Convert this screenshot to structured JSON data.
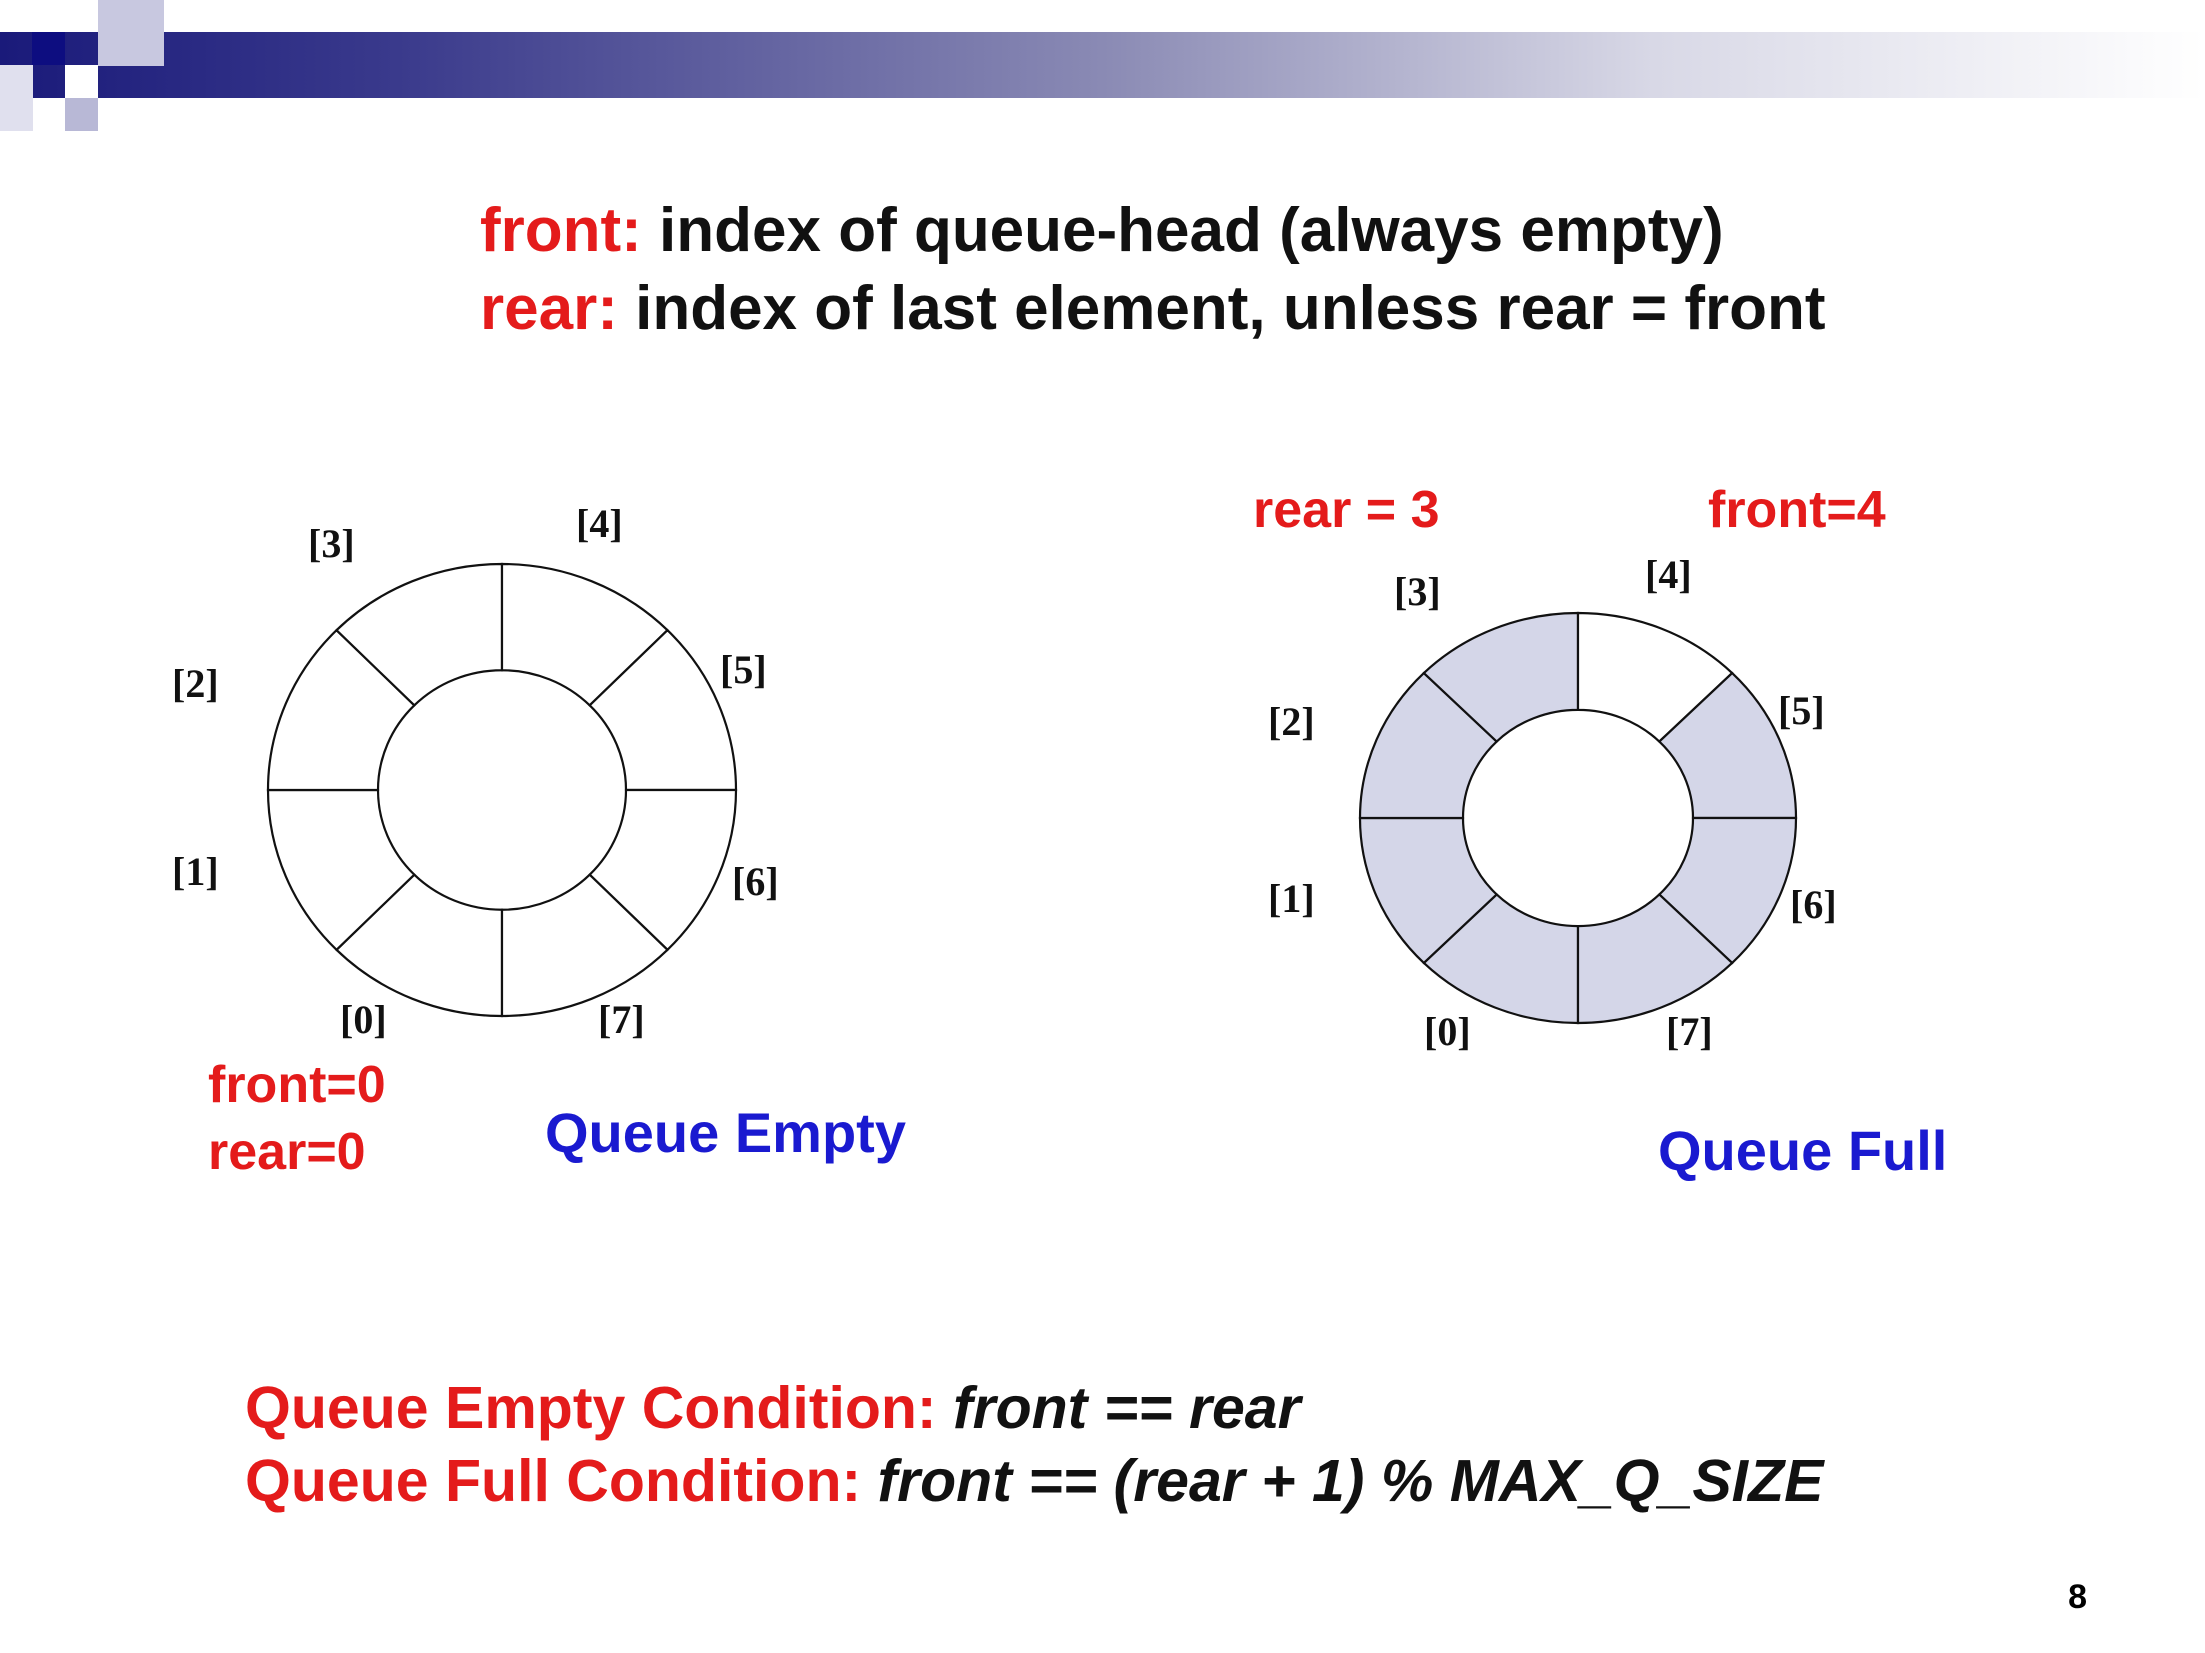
{
  "header": {
    "front_label": "front:",
    "front_desc": " index of queue-head (always empty)",
    "rear_label": "rear:",
    "rear_desc": " index of last element, unless rear = front"
  },
  "empty_queue": {
    "indices": [
      "[0]",
      "[1]",
      "[2]",
      "[3]",
      "[4]",
      "[5]",
      "[6]",
      "[7]"
    ],
    "front_text": "front=0",
    "rear_text": "rear=0",
    "caption": "Queue Empty"
  },
  "full_queue": {
    "indices": [
      "[0]",
      "[1]",
      "[2]",
      "[3]",
      "[4]",
      "[5]",
      "[6]",
      "[7]"
    ],
    "rear_text": "rear = 3",
    "front_text": "front=4",
    "caption": "Queue Full",
    "fill_color": "#d4d6e8"
  },
  "conditions": {
    "empty_label": "Queue Empty Condition: ",
    "empty_expr": "front == rear",
    "full_label": "Queue Full Condition: ",
    "full_expr": "front == (rear + 1) % MAX_Q_SIZE"
  },
  "slide_number": "8",
  "colors": {
    "label_red": "#e41b1b",
    "caption_blue": "#1a1ad0",
    "header_navy": "#1a1a7a"
  }
}
